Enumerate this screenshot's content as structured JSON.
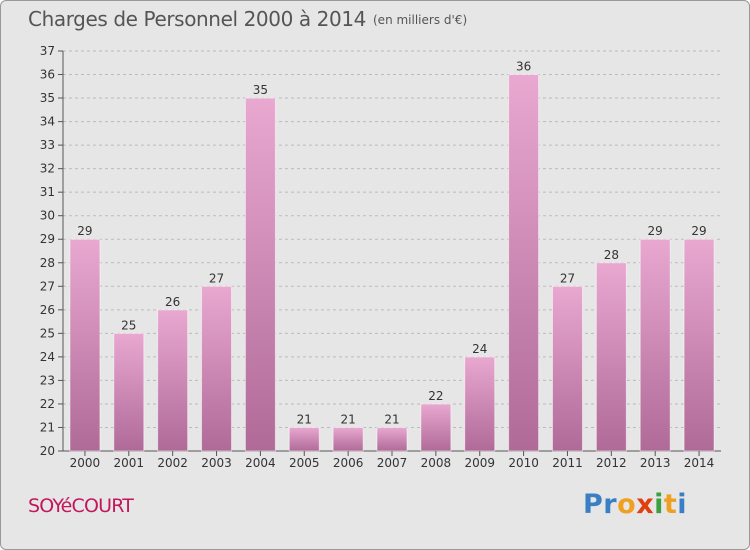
{
  "header": {
    "title": "Charges de Personnel 2000 à 2014",
    "subtitle": "(en milliers d'€)"
  },
  "footer": {
    "town": "SOYéCOURT",
    "logo_letters": [
      "P",
      "r",
      "o",
      "x",
      "i",
      "t",
      "i"
    ]
  },
  "colors": {
    "background": "#e6e6e6",
    "bar_top": "#e8a8d0",
    "bar_bottom": "#b06a98",
    "grid": "#bbbbbb",
    "town": "#c2185b",
    "logo": [
      "#3a7fc4",
      "#3a7fc4",
      "#f0a020",
      "#e04010",
      "#3aa040",
      "#f0a020",
      "#3a7fc4"
    ]
  },
  "chart_data": {
    "type": "bar",
    "categories": [
      "2000",
      "2001",
      "2002",
      "2003",
      "2004",
      "2005",
      "2006",
      "2007",
      "2008",
      "2009",
      "2010",
      "2011",
      "2012",
      "2013",
      "2014"
    ],
    "values": [
      29,
      25,
      26,
      27,
      35,
      21,
      21,
      21,
      22,
      24,
      36,
      27,
      28,
      29,
      29
    ],
    "ylim": [
      20,
      37
    ],
    "yticks": [
      20,
      21,
      22,
      23,
      24,
      25,
      26,
      27,
      28,
      29,
      30,
      31,
      32,
      33,
      34,
      35,
      36,
      37
    ],
    "grid": true,
    "xlabel": "",
    "ylabel": ""
  }
}
